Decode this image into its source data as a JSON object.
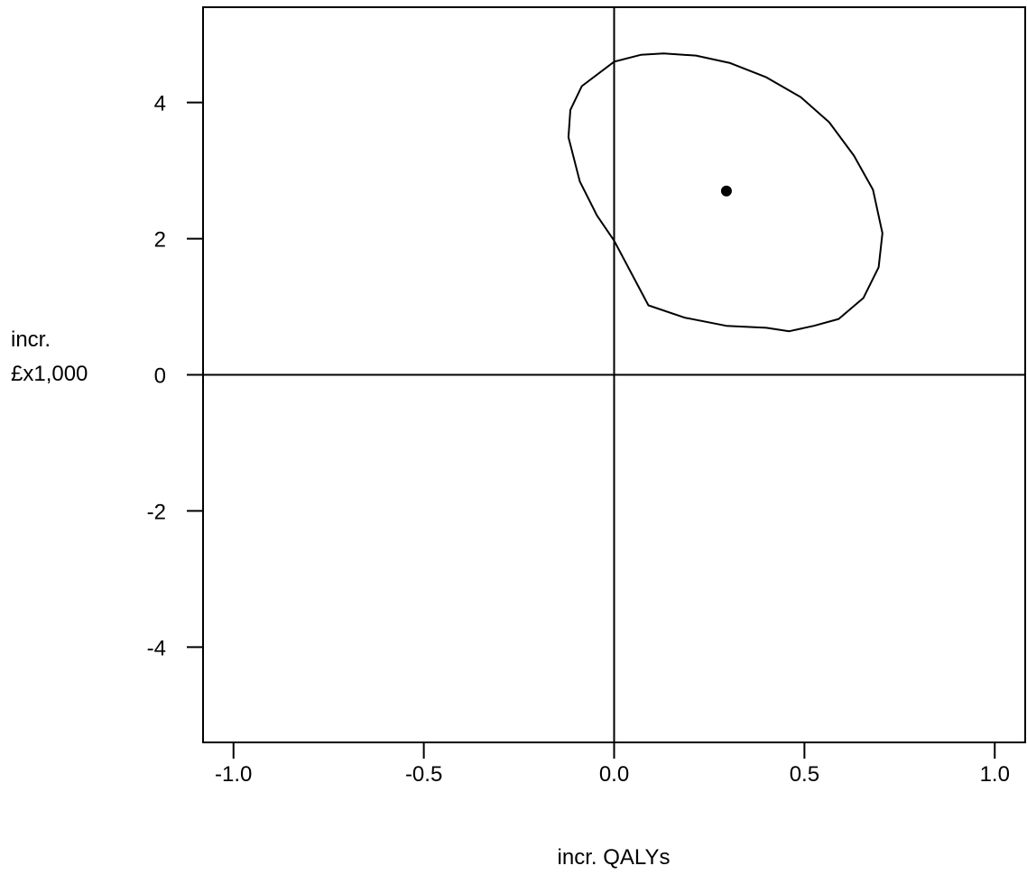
{
  "chart_data": {
    "type": "scatter",
    "title": "",
    "xlabel": "incr. QALYs",
    "ylabel_lines": [
      "incr.",
      "£x1,000"
    ],
    "xlim": [
      -1.08,
      1.08
    ],
    "ylim": [
      -5.4,
      5.4
    ],
    "x_ticks": [
      -1.0,
      -0.5,
      0.0,
      0.5,
      1.0
    ],
    "x_tick_labels": [
      "-1.0",
      "-0.5",
      "0.0",
      "0.5",
      "1.0"
    ],
    "y_ticks": [
      -4,
      -2,
      0,
      2,
      4
    ],
    "y_tick_labels": [
      "-4",
      "-2",
      "0",
      "2",
      "4"
    ],
    "reference_lines": {
      "x": 0,
      "y": 0
    },
    "grid": false,
    "point": {
      "x": 0.295,
      "y": 2.7
    },
    "ellipse": [
      [
        0.13,
        4.72
      ],
      [
        0.215,
        4.69
      ],
      [
        0.305,
        4.58
      ],
      [
        0.4,
        4.37
      ],
      [
        0.49,
        4.08
      ],
      [
        0.565,
        3.71
      ],
      [
        0.63,
        3.22
      ],
      [
        0.68,
        2.72
      ],
      [
        0.705,
        2.08
      ],
      [
        0.695,
        1.58
      ],
      [
        0.655,
        1.13
      ],
      [
        0.59,
        0.82
      ],
      [
        0.525,
        0.72
      ],
      [
        0.46,
        0.64
      ],
      [
        0.4,
        0.69
      ],
      [
        0.295,
        0.72
      ],
      [
        0.185,
        0.84
      ],
      [
        0.09,
        1.02
      ],
      [
        0.0,
        1.97
      ],
      [
        -0.045,
        2.34
      ],
      [
        -0.09,
        2.84
      ],
      [
        -0.12,
        3.49
      ],
      [
        -0.115,
        3.89
      ],
      [
        -0.085,
        4.24
      ],
      [
        0.0,
        4.6
      ],
      [
        0.07,
        4.7
      ],
      [
        0.13,
        4.72
      ]
    ],
    "line_color": "#000000",
    "point_color": "#000000"
  }
}
